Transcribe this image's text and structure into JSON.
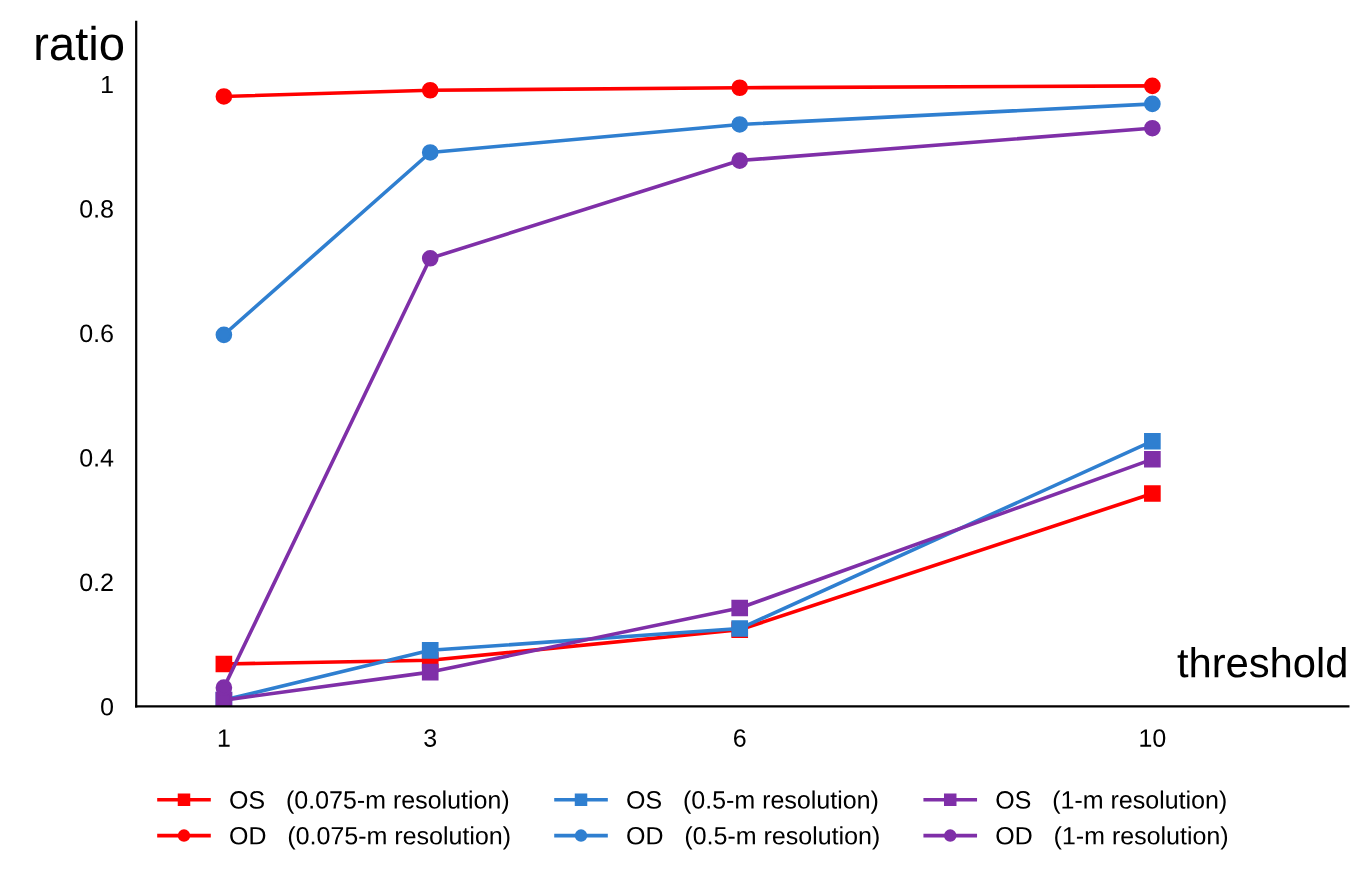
{
  "chart_data": {
    "type": "line",
    "xlabel": "threshold",
    "ylabel": "ratio",
    "x": [
      1,
      3,
      6,
      10
    ],
    "xlim": [
      0.15,
      11.9
    ],
    "xticks": [
      1,
      3,
      6,
      10
    ],
    "ylim": [
      0,
      1.1
    ],
    "yticks": [
      0,
      0.2,
      0.4,
      0.6,
      0.8,
      1
    ],
    "grid": false,
    "legend": "bottom",
    "line_style": "solid",
    "series": [
      {
        "name": "OS   (0.075-m resolution)",
        "color": "#ff0000",
        "marker": "square",
        "values": [
          0.068,
          0.074,
          0.123,
          0.342
        ]
      },
      {
        "name": "OD   (0.075-m resolution)",
        "color": "#ff0000",
        "marker": "circle",
        "values": [
          0.98,
          0.99,
          0.994,
          0.997
        ]
      },
      {
        "name": "OS   (0.5-m resolution)",
        "color": "#2f7fd0",
        "marker": "square",
        "values": [
          0.01,
          0.09,
          0.125,
          0.426
        ]
      },
      {
        "name": "OD   (0.5-m resolution)",
        "color": "#2f7fd0",
        "marker": "circle",
        "values": [
          0.597,
          0.89,
          0.935,
          0.968
        ]
      },
      {
        "name": "OS   (1-m resolution)",
        "color": "#7f2fa8",
        "marker": "square",
        "values": [
          0.01,
          0.055,
          0.158,
          0.397
        ]
      },
      {
        "name": "OD   (1-m resolution)",
        "color": "#7f2fa8",
        "marker": "circle",
        "values": [
          0.03,
          0.72,
          0.877,
          0.929
        ]
      }
    ]
  }
}
